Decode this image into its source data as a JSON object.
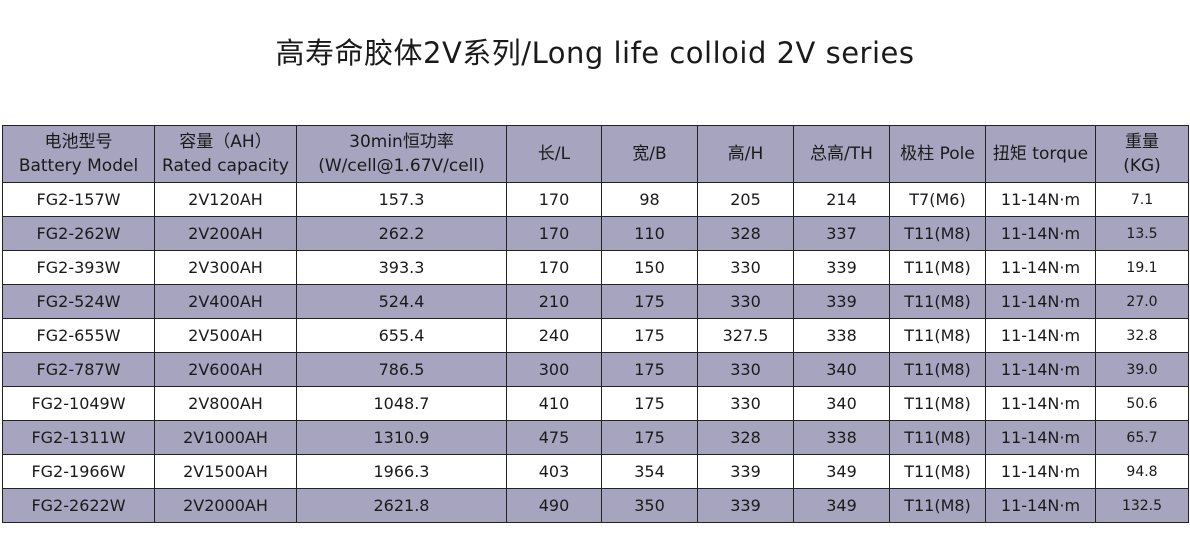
{
  "title": "高寿命胶体2V系列/Long life colloid 2V series",
  "headers": [
    {
      "line1": "电池型号",
      "line2": "Battery Model"
    },
    {
      "line1": "容量（AH）",
      "line2": "Rated capacity"
    },
    {
      "line1": "30min恒功率",
      "line2": "(W/cell@1.67V/cell)"
    },
    {
      "line1": "长/L",
      "line2": ""
    },
    {
      "line1": "宽/B",
      "line2": ""
    },
    {
      "line1": "高/H",
      "line2": ""
    },
    {
      "line1": "总高/TH",
      "line2": ""
    },
    {
      "line1": "极柱 Pole",
      "line2": ""
    },
    {
      "line1": "扭矩 torque",
      "line2": ""
    },
    {
      "line1": "重量",
      "line2": "(KG)"
    }
  ],
  "rows": [
    [
      "FG2-157W",
      "2V120AH",
      "157.3",
      "170",
      "98",
      "205",
      "214",
      "T7(M6)",
      "11-14N·m",
      "7.1"
    ],
    [
      "FG2-262W",
      "2V200AH",
      "262.2",
      "170",
      "110",
      "328",
      "337",
      "T11(M8)",
      "11-14N·m",
      "13.5"
    ],
    [
      "FG2-393W",
      "2V300AH",
      "393.3",
      "170",
      "150",
      "330",
      "339",
      "T11(M8)",
      "11-14N·m",
      "19.1"
    ],
    [
      "FG2-524W",
      "2V400AH",
      "524.4",
      "210",
      "175",
      "330",
      "339",
      "T11(M8)",
      "11-14N·m",
      "27.0"
    ],
    [
      "FG2-655W",
      "2V500AH",
      "655.4",
      "240",
      "175",
      "327.5",
      "338",
      "T11(M8)",
      "11-14N·m",
      "32.8"
    ],
    [
      "FG2-787W",
      "2V600AH",
      "786.5",
      "300",
      "175",
      "330",
      "340",
      "T11(M8)",
      "11-14N·m",
      "39.0"
    ],
    [
      "FG2-1049W",
      "2V800AH",
      "1048.7",
      "410",
      "175",
      "330",
      "340",
      "T11(M8)",
      "11-14N·m",
      "50.6"
    ],
    [
      "FG2-1311W",
      "2V1000AH",
      "1310.9",
      "475",
      "175",
      "328",
      "338",
      "T11(M8)",
      "11-14N·m",
      "65.7"
    ],
    [
      "FG2-1966W",
      "2V1500AH",
      "1966.3",
      "403",
      "354",
      "339",
      "349",
      "T11(M8)",
      "11-14N·m",
      "94.8"
    ],
    [
      "FG2-2622W",
      "2V2000AH",
      "2621.8",
      "490",
      "350",
      "339",
      "349",
      "T11(M8)",
      "11-14N·m",
      "132.5"
    ]
  ],
  "colors": {
    "stripe": "#a6a4bf",
    "border": "#222222"
  }
}
